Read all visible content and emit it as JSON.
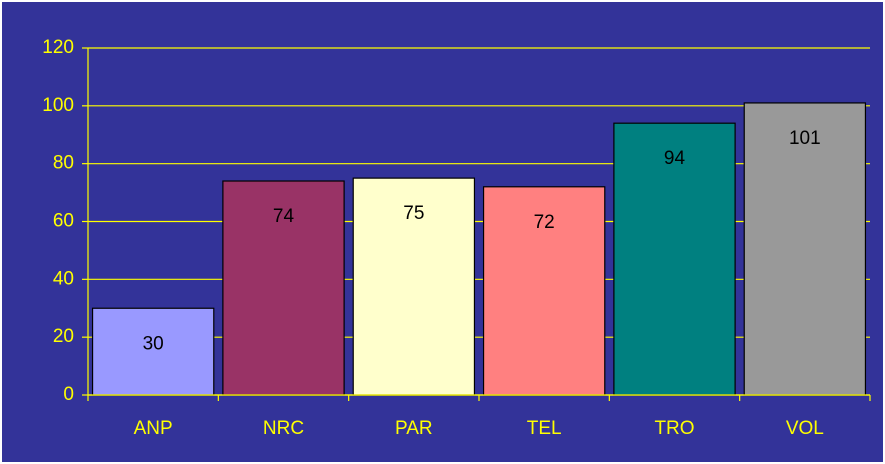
{
  "chart_data": {
    "type": "bar",
    "categories": [
      "ANP",
      "NRC",
      "PAR",
      "TEL",
      "TRO",
      "VOL"
    ],
    "values": [
      30,
      74,
      75,
      72,
      94,
      101
    ],
    "colors": [
      "#9999ff",
      "#993366",
      "#ffffcc",
      "#ff8080",
      "#008080",
      "#999999"
    ],
    "ylim": [
      0,
      120
    ],
    "yticks": [
      0,
      20,
      40,
      60,
      80,
      100,
      120
    ],
    "grid": true
  }
}
